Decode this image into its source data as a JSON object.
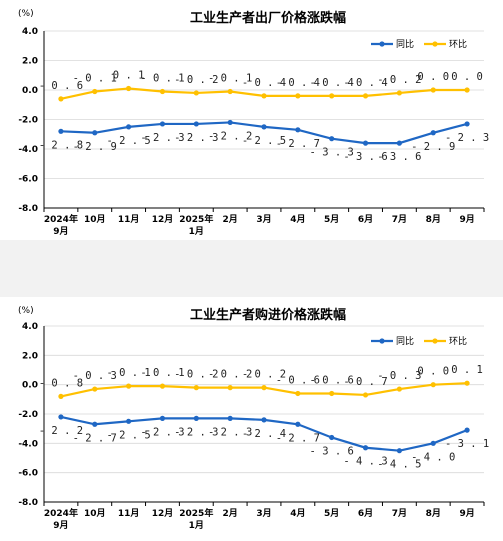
{
  "colors": {
    "yoy": "#1f67c4",
    "mom": "#ffc000",
    "grid": "#d9d9d9",
    "axis": "#000000"
  },
  "chart_data": [
    {
      "type": "line",
      "title": "工业生产者出厂价格涨跌幅",
      "unit": "(%)",
      "categories": [
        [
          "2024年",
          "9月"
        ],
        [
          "10月"
        ],
        [
          "11月"
        ],
        [
          "12月"
        ],
        [
          "2025年",
          "1月"
        ],
        [
          "2月"
        ],
        [
          "3月"
        ],
        [
          "4月"
        ],
        [
          "5月"
        ],
        [
          "6月"
        ],
        [
          "7月"
        ],
        [
          "8月"
        ],
        [
          "9月"
        ]
      ],
      "ylim": [
        -8.0,
        4.0
      ],
      "yticks": [
        "4.0",
        "2.0",
        "0.0",
        "-2.0",
        "-4.0",
        "-6.0",
        "-8.0"
      ],
      "legend": "top-right",
      "grid": true,
      "series": [
        {
          "name": "同比",
          "color": "yoy",
          "values": [
            -2.8,
            -2.9,
            -2.5,
            -2.3,
            -2.3,
            -2.2,
            -2.5,
            -2.7,
            -3.3,
            -3.6,
            -3.6,
            -2.9,
            -2.3
          ],
          "labels": [
            "-2.8",
            "-2.9",
            "-2.5",
            "-2.3",
            "-2.3",
            "-2.2",
            "-2.5",
            "-2.7",
            "-3.3",
            "-3.6",
            "-3.6",
            "-2.9",
            "-2.3"
          ]
        },
        {
          "name": "环比",
          "color": "mom",
          "values": [
            -0.6,
            -0.1,
            0.1,
            -0.1,
            -0.2,
            -0.1,
            -0.4,
            -0.4,
            -0.4,
            -0.4,
            -0.2,
            0.0,
            0.0
          ],
          "labels": [
            "-0.6",
            "-0.1",
            "0.1",
            "-0.1",
            "-0.2",
            "-0.1",
            "-0.4",
            "-0.4",
            "-0.4",
            "-0.4",
            "-0.2",
            "0.0",
            "0.0"
          ]
        }
      ]
    },
    {
      "type": "line",
      "title": "工业生产者购进价格涨跌幅",
      "unit": "(%)",
      "categories": [
        [
          "2024年",
          "9月"
        ],
        [
          "10月"
        ],
        [
          "11月"
        ],
        [
          "12月"
        ],
        [
          "2025年",
          "1月"
        ],
        [
          "2月"
        ],
        [
          "3月"
        ],
        [
          "4月"
        ],
        [
          "5月"
        ],
        [
          "6月"
        ],
        [
          "7月"
        ],
        [
          "8月"
        ],
        [
          "9月"
        ]
      ],
      "ylim": [
        -8.0,
        4.0
      ],
      "yticks": [
        "4.0",
        "2.0",
        "0.0",
        "-2.0",
        "-4.0",
        "-6.0",
        "-8.0"
      ],
      "legend": "top-right",
      "grid": true,
      "series": [
        {
          "name": "同比",
          "color": "yoy",
          "values": [
            -2.2,
            -2.7,
            -2.5,
            -2.3,
            -2.3,
            -2.3,
            -2.4,
            -2.7,
            -3.6,
            -4.3,
            -4.5,
            -4.0,
            -3.1
          ],
          "labels": [
            "-2.2",
            "-2.7",
            "-2.5",
            "-2.3",
            "-2.3",
            "-2.3",
            "-2.4",
            "-2.7",
            "-3.6",
            "-4.3",
            "-4.5",
            "-4.0",
            "-3.1"
          ]
        },
        {
          "name": "环比",
          "color": "mom",
          "values": [
            -0.8,
            -0.3,
            -0.1,
            -0.1,
            -0.2,
            -0.2,
            -0.2,
            -0.6,
            -0.6,
            -0.7,
            -0.3,
            0.0,
            0.1
          ],
          "labels": [
            "-0.8",
            "-0.3",
            "-0.1",
            "-0.1",
            "-0.2",
            "-0.2",
            "-0.2",
            "-0.6",
            "-0.6",
            "-0.7",
            "-0.3",
            "0.0",
            "0.1"
          ]
        }
      ]
    }
  ]
}
